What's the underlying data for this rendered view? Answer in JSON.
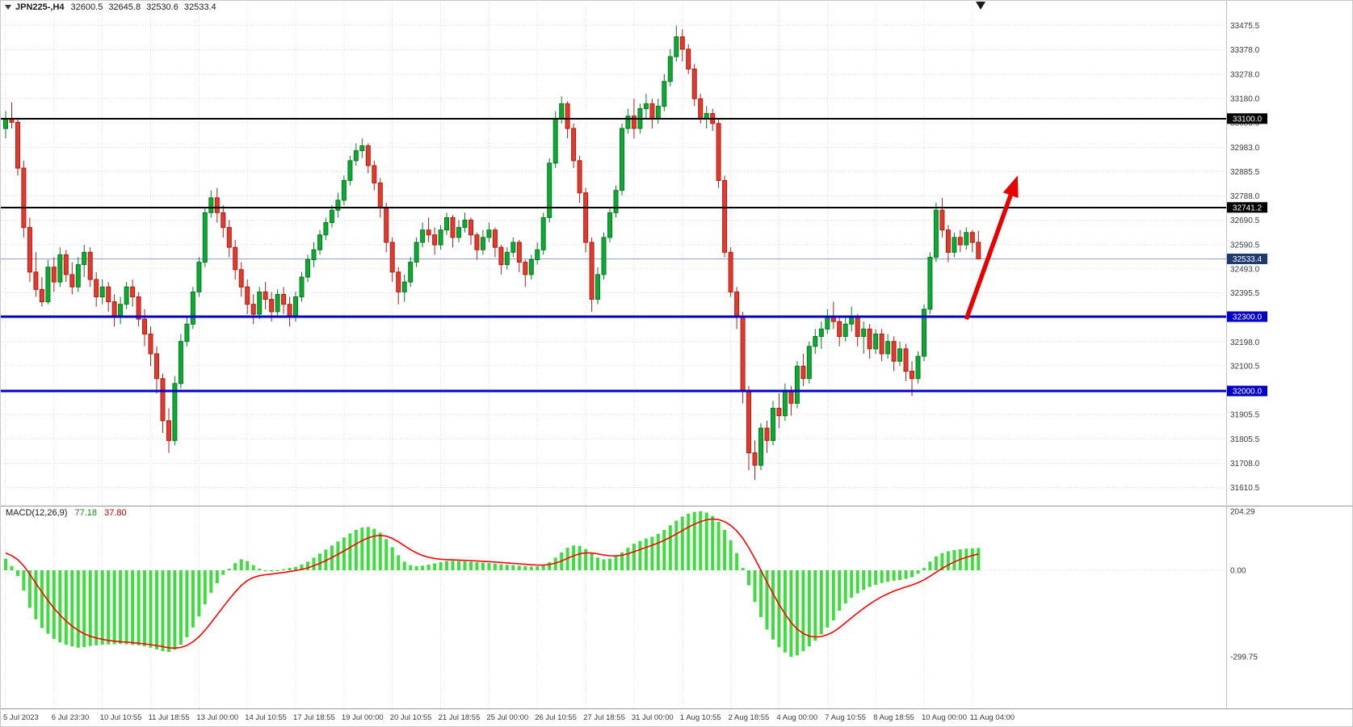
{
  "header": {
    "symbol_timeframe": "JPN225-,H4",
    "open": "32600.5",
    "high": "32645.8",
    "low": "32530.6",
    "close": "32533.4"
  },
  "macd_panel": {
    "name": "MACD(12,26,9)",
    "main_value": "77.18",
    "signal_value": "37.80"
  },
  "colors": {
    "bull": "#0caa33",
    "bull_border": "#067a22",
    "bear": "#e23a2e",
    "bear_border": "#b01d12",
    "macd_hist": "#3fdc3f",
    "macd_signal": "#ff0000",
    "price_line": "#8fa3c8",
    "price_box": "#1f3a6e",
    "arrow": "#e60000",
    "grid": "#dcdcdc",
    "background": "#ffffff"
  },
  "chart_data": {
    "type": "candlestick",
    "symbol": "JPN225-",
    "timeframe": "H4",
    "title": "JPN225-,H4 32600.5 32645.8 32530.6 32533.4",
    "price_range": [
      31540,
      33520
    ],
    "price_axis_ticks": [
      33475.5,
      33378.0,
      33278.0,
      33180.0,
      33083.0,
      32983.0,
      32885.5,
      32788.0,
      32690.5,
      32590.5,
      32493.0,
      32395.5,
      32298.0,
      32198.0,
      32100.5,
      32003.0,
      31905.5,
      31805.5,
      31708.0,
      31610.5
    ],
    "levels": [
      {
        "price": 33100.0,
        "label": "33100.0",
        "color": "#000000",
        "width": 2
      },
      {
        "price": 32741.2,
        "label": "32741.2",
        "color": "#000000",
        "width": 2
      },
      {
        "price": 32300.0,
        "label": "32300.0",
        "color": "#0000c8",
        "width": 3
      },
      {
        "price": 32000.0,
        "label": "32000.0",
        "color": "#0000c8",
        "width": 3
      }
    ],
    "current_price": {
      "price": 32533.4,
      "label": "32533.4"
    },
    "time_labels": [
      {
        "text": "5 Jul 2023",
        "index": 0
      },
      {
        "text": "6 Jul 23:30",
        "index": 8
      },
      {
        "text": "10 Jul 10:55",
        "index": 16
      },
      {
        "text": "11 Jul 18:55",
        "index": 24
      },
      {
        "text": "13 Jul 00:00",
        "index": 32
      },
      {
        "text": "14 Jul 10:55",
        "index": 40
      },
      {
        "text": "17 Jul 18:55",
        "index": 48
      },
      {
        "text": "19 Jul 00:00",
        "index": 56
      },
      {
        "text": "20 Jul 10:55",
        "index": 64
      },
      {
        "text": "21 Jul 18:55",
        "index": 72
      },
      {
        "text": "25 Jul 00:00",
        "index": 80
      },
      {
        "text": "26 Jul 10:55",
        "index": 88
      },
      {
        "text": "27 Jul 18:55",
        "index": 96
      },
      {
        "text": "31 Jul 00:00",
        "index": 104
      },
      {
        "text": "1 Aug 10:55",
        "index": 112
      },
      {
        "text": "2 Aug 18:55",
        "index": 120
      },
      {
        "text": "4 Aug 00:00",
        "index": 128
      },
      {
        "text": "7 Aug 10:55",
        "index": 136
      },
      {
        "text": "8 Aug 18:55",
        "index": 144
      },
      {
        "text": "10 Aug 00:00",
        "index": 152
      },
      {
        "text": "11 Aug 04:00",
        "index": 160
      }
    ],
    "candles": [
      [
        33060,
        33130,
        33020,
        33100
      ],
      [
        33100,
        33165,
        33060,
        33085
      ],
      [
        33085,
        33100,
        32870,
        32900
      ],
      [
        32900,
        32930,
        32620,
        32660
      ],
      [
        32660,
        32700,
        32440,
        32480
      ],
      [
        32480,
        32560,
        32380,
        32410
      ],
      [
        32410,
        32460,
        32340,
        32360
      ],
      [
        32360,
        32530,
        32350,
        32500
      ],
      [
        32500,
        32540,
        32400,
        32440
      ],
      [
        32440,
        32580,
        32420,
        32550
      ],
      [
        32550,
        32570,
        32440,
        32470
      ],
      [
        32470,
        32520,
        32390,
        32420
      ],
      [
        32420,
        32540,
        32400,
        32510
      ],
      [
        32510,
        32590,
        32460,
        32560
      ],
      [
        32560,
        32580,
        32420,
        32450
      ],
      [
        32450,
        32480,
        32340,
        32380
      ],
      [
        32380,
        32450,
        32350,
        32420
      ],
      [
        32420,
        32440,
        32320,
        32360
      ],
      [
        32360,
        32390,
        32260,
        32300
      ],
      [
        32300,
        32380,
        32270,
        32350
      ],
      [
        32350,
        32440,
        32330,
        32420
      ],
      [
        32420,
        32450,
        32340,
        32380
      ],
      [
        32380,
        32400,
        32260,
        32290
      ],
      [
        32290,
        32330,
        32180,
        32230
      ],
      [
        32230,
        32260,
        32100,
        32150
      ],
      [
        32150,
        32180,
        31990,
        32050
      ],
      [
        32050,
        32070,
        31830,
        31880
      ],
      [
        31880,
        31930,
        31750,
        31800
      ],
      [
        31800,
        32060,
        31780,
        32030
      ],
      [
        32030,
        32230,
        32010,
        32200
      ],
      [
        32200,
        32300,
        32180,
        32270
      ],
      [
        32270,
        32420,
        32250,
        32400
      ],
      [
        32400,
        32540,
        32380,
        32520
      ],
      [
        32520,
        32740,
        32500,
        32720
      ],
      [
        32720,
        32810,
        32700,
        32780
      ],
      [
        32780,
        32820,
        32680,
        32720
      ],
      [
        32720,
        32750,
        32620,
        32660
      ],
      [
        32660,
        32690,
        32540,
        32580
      ],
      [
        32580,
        32610,
        32450,
        32490
      ],
      [
        32490,
        32520,
        32380,
        32420
      ],
      [
        32420,
        32450,
        32310,
        32350
      ],
      [
        32350,
        32390,
        32270,
        32310
      ],
      [
        32310,
        32420,
        32290,
        32400
      ],
      [
        32400,
        32440,
        32330,
        32370
      ],
      [
        32370,
        32400,
        32280,
        32320
      ],
      [
        32320,
        32410,
        32300,
        32390
      ],
      [
        32390,
        32420,
        32310,
        32350
      ],
      [
        32350,
        32380,
        32260,
        32300
      ],
      [
        32300,
        32400,
        32280,
        32380
      ],
      [
        32380,
        32480,
        32360,
        32460
      ],
      [
        32460,
        32550,
        32440,
        32530
      ],
      [
        32530,
        32600,
        32500,
        32570
      ],
      [
        32570,
        32650,
        32550,
        32630
      ],
      [
        32630,
        32700,
        32610,
        32680
      ],
      [
        32680,
        32750,
        32660,
        32730
      ],
      [
        32730,
        32800,
        32700,
        32770
      ],
      [
        32770,
        32870,
        32750,
        32850
      ],
      [
        32850,
        32950,
        32830,
        32930
      ],
      [
        32930,
        33000,
        32910,
        32970
      ],
      [
        32970,
        33020,
        32940,
        32990
      ],
      [
        32990,
        33000,
        32880,
        32910
      ],
      [
        32910,
        32930,
        32810,
        32840
      ],
      [
        32840,
        32860,
        32700,
        32740
      ],
      [
        32740,
        32760,
        32560,
        32600
      ],
      [
        32600,
        32620,
        32440,
        32480
      ],
      [
        32480,
        32500,
        32350,
        32400
      ],
      [
        32400,
        32470,
        32360,
        32440
      ],
      [
        32440,
        32540,
        32420,
        32520
      ],
      [
        32520,
        32620,
        32500,
        32600
      ],
      [
        32600,
        32680,
        32580,
        32650
      ],
      [
        32650,
        32700,
        32600,
        32630
      ],
      [
        32630,
        32660,
        32550,
        32590
      ],
      [
        32590,
        32670,
        32570,
        32650
      ],
      [
        32650,
        32720,
        32630,
        32700
      ],
      [
        32700,
        32710,
        32580,
        32620
      ],
      [
        32620,
        32690,
        32600,
        32660
      ],
      [
        32660,
        32720,
        32640,
        32690
      ],
      [
        32690,
        32700,
        32590,
        32630
      ],
      [
        32630,
        32640,
        32530,
        32570
      ],
      [
        32570,
        32650,
        32550,
        32620
      ],
      [
        32620,
        32680,
        32600,
        32650
      ],
      [
        32650,
        32660,
        32540,
        32580
      ],
      [
        32580,
        32590,
        32470,
        32510
      ],
      [
        32510,
        32580,
        32490,
        32560
      ],
      [
        32560,
        32620,
        32540,
        32600
      ],
      [
        32600,
        32610,
        32480,
        32520
      ],
      [
        32520,
        32530,
        32420,
        32470
      ],
      [
        32470,
        32550,
        32450,
        32530
      ],
      [
        32530,
        32600,
        32510,
        32570
      ],
      [
        32570,
        32720,
        32550,
        32700
      ],
      [
        32700,
        32940,
        32680,
        32920
      ],
      [
        32920,
        33130,
        32900,
        33100
      ],
      [
        33100,
        33190,
        33080,
        33160
      ],
      [
        33160,
        33170,
        33020,
        33060
      ],
      [
        33060,
        33080,
        32900,
        32930
      ],
      [
        32930,
        32950,
        32760,
        32800
      ],
      [
        32800,
        32820,
        32560,
        32600
      ],
      [
        32600,
        32620,
        32320,
        32370
      ],
      [
        32370,
        32500,
        32350,
        32470
      ],
      [
        32470,
        32640,
        32450,
        32620
      ],
      [
        32620,
        32740,
        32600,
        32720
      ],
      [
        32720,
        32830,
        32700,
        32810
      ],
      [
        32810,
        33080,
        32790,
        33060
      ],
      [
        33060,
        33140,
        33040,
        33110
      ],
      [
        33110,
        33180,
        33020,
        33060
      ],
      [
        33060,
        33160,
        33040,
        33140
      ],
      [
        33140,
        33200,
        33100,
        33160
      ],
      [
        33160,
        33180,
        33060,
        33100
      ],
      [
        33100,
        33180,
        33080,
        33150
      ],
      [
        33150,
        33280,
        33130,
        33250
      ],
      [
        33250,
        33380,
        33230,
        33350
      ],
      [
        33350,
        33475,
        33330,
        33430
      ],
      [
        33430,
        33460,
        33330,
        33380
      ],
      [
        33380,
        33400,
        33280,
        33300
      ],
      [
        33300,
        33320,
        33150,
        33180
      ],
      [
        33180,
        33200,
        33080,
        33100
      ],
      [
        33100,
        33150,
        33060,
        33120
      ],
      [
        33120,
        33140,
        33050,
        33080
      ],
      [
        33080,
        33100,
        32820,
        32850
      ],
      [
        32850,
        32870,
        32540,
        32560
      ],
      [
        32560,
        32580,
        32380,
        32400
      ],
      [
        32400,
        32420,
        32250,
        32300
      ],
      [
        32300,
        32320,
        31950,
        32000
      ],
      [
        32000,
        32020,
        31680,
        31750
      ],
      [
        31750,
        31800,
        31640,
        31700
      ],
      [
        31700,
        31870,
        31680,
        31850
      ],
      [
        31850,
        31880,
        31750,
        31800
      ],
      [
        31800,
        31960,
        31780,
        31930
      ],
      [
        31930,
        31990,
        31850,
        31900
      ],
      [
        31900,
        32030,
        31880,
        32000
      ],
      [
        32000,
        32020,
        31900,
        31950
      ],
      [
        31950,
        32120,
        31930,
        32100
      ],
      [
        32100,
        32150,
        32020,
        32050
      ],
      [
        32050,
        32200,
        32030,
        32180
      ],
      [
        32180,
        32250,
        32150,
        32220
      ],
      [
        32220,
        32280,
        32170,
        32250
      ],
      [
        32250,
        32330,
        32230,
        32300
      ],
      [
        32300,
        32360,
        32250,
        32280
      ],
      [
        32280,
        32300,
        32180,
        32220
      ],
      [
        32220,
        32300,
        32200,
        32270
      ],
      [
        32270,
        32340,
        32240,
        32300
      ],
      [
        32300,
        32310,
        32180,
        32220
      ],
      [
        32220,
        32280,
        32150,
        32250
      ],
      [
        32250,
        32270,
        32130,
        32170
      ],
      [
        32170,
        32250,
        32150,
        32230
      ],
      [
        32230,
        32250,
        32120,
        32150
      ],
      [
        32150,
        32230,
        32130,
        32200
      ],
      [
        32200,
        32220,
        32080,
        32120
      ],
      [
        32120,
        32200,
        32100,
        32170
      ],
      [
        32170,
        32190,
        32040,
        32080
      ],
      [
        32080,
        32120,
        31980,
        32050
      ],
      [
        32050,
        32160,
        32030,
        32140
      ],
      [
        32140,
        32350,
        32120,
        32330
      ],
      [
        32330,
        32560,
        32310,
        32540
      ],
      [
        32540,
        32760,
        32520,
        32730
      ],
      [
        32730,
        32780,
        32620,
        32650
      ],
      [
        32650,
        32670,
        32520,
        32560
      ],
      [
        32560,
        32640,
        32540,
        32620
      ],
      [
        32620,
        32650,
        32560,
        32590
      ],
      [
        32590,
        32660,
        32570,
        32640
      ],
      [
        32640,
        32650,
        32560,
        32600
      ],
      [
        32600.5,
        32645.8,
        32530.6,
        32533.4
      ]
    ],
    "macd": {
      "label": "MACD(12,26,9)",
      "main_value": 77.18,
      "signal_value": 37.8,
      "signal_period": 9,
      "signal_seed": 65,
      "axis_ticks": [
        {
          "label": "204.29",
          "value": 204.29
        },
        {
          "label": "0.00",
          "value": 0.0
        },
        {
          "label": "-299.75",
          "value": -299.75
        }
      ],
      "hist": [
        40,
        15,
        -20,
        -70,
        -130,
        -170,
        -200,
        -220,
        -238,
        -250,
        -258,
        -264,
        -268,
        -266,
        -262,
        -260,
        -258,
        -257,
        -256,
        -255,
        -256,
        -258,
        -260,
        -263,
        -268,
        -274,
        -280,
        -283,
        -275,
        -258,
        -232,
        -198,
        -160,
        -118,
        -78,
        -45,
        -16,
        6,
        25,
        38,
        32,
        18,
        6,
        -2,
        -4,
        0,
        4,
        8,
        12,
        20,
        30,
        44,
        58,
        72,
        86,
        100,
        114,
        128,
        140,
        148,
        150,
        144,
        130,
        108,
        80,
        52,
        30,
        18,
        14,
        16,
        20,
        24,
        28,
        32,
        33,
        32,
        31,
        30,
        28,
        26,
        25,
        23,
        21,
        19,
        18,
        16,
        14,
        13,
        14,
        18,
        28,
        44,
        62,
        78,
        86,
        84,
        74,
        58,
        44,
        38,
        40,
        48,
        62,
        78,
        92,
        102,
        110,
        116,
        126,
        140,
        156,
        172,
        186,
        196,
        202,
        204.29,
        200,
        188,
        168,
        140,
        104,
        60,
        8,
        -52,
        -110,
        -162,
        -205,
        -240,
        -266,
        -285,
        -299.75,
        -295,
        -280,
        -264,
        -244,
        -222,
        -198,
        -174,
        -140,
        -115,
        -95,
        -80,
        -68,
        -58,
        -50,
        -44,
        -40,
        -36,
        -34,
        -30,
        -24,
        -12,
        8,
        30,
        48,
        60,
        66,
        70,
        73,
        75,
        76,
        77.18
      ]
    },
    "annotations": [
      {
        "type": "arrow",
        "color": "#e60000",
        "from": {
          "index": 159,
          "price": 32290
        },
        "to": {
          "index": 167.5,
          "price": 32870
        }
      }
    ]
  }
}
